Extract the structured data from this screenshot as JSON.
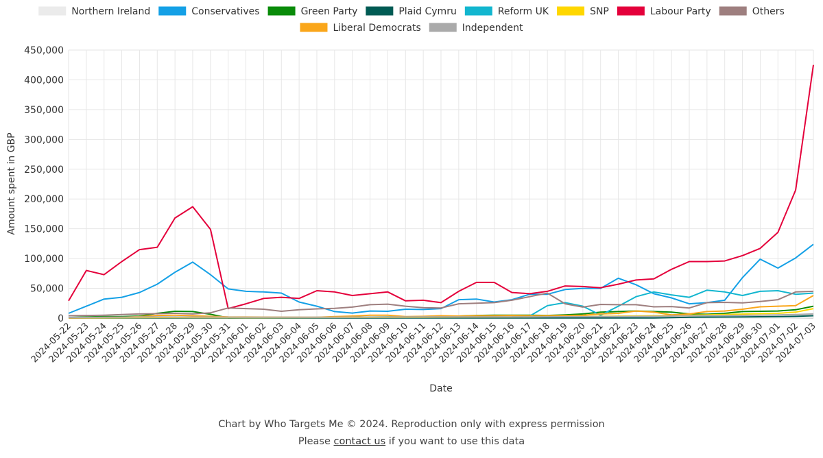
{
  "chart_data": {
    "type": "line",
    "xlabel": "Date",
    "ylabel": "Amount spent in GBP",
    "ylim": [
      0,
      450000
    ],
    "yticks": [
      0,
      50000,
      100000,
      150000,
      200000,
      250000,
      300000,
      350000,
      400000,
      450000
    ],
    "ytick_labels": [
      "0",
      "50,000",
      "100,000",
      "150,000",
      "200,000",
      "250,000",
      "300,000",
      "350,000",
      "400,000",
      "450,000"
    ],
    "grid": true,
    "legend_position": "top",
    "x": [
      "2024-05-22",
      "2024-05-23",
      "2024-05-24",
      "2024-05-25",
      "2024-05-26",
      "2024-05-27",
      "2024-05-28",
      "2024-05-29",
      "2024-05-30",
      "2024-05-31",
      "2024-06-01",
      "2024-06-02",
      "2024-06-03",
      "2024-06-04",
      "2024-06-05",
      "2024-06-06",
      "2024-06-07",
      "2024-06-08",
      "2024-06-09",
      "2024-06-10",
      "2024-06-11",
      "2024-06-12",
      "2024-06-13",
      "2024-06-14",
      "2024-06-15",
      "2024-06-16",
      "2024-06-17",
      "2024-06-18",
      "2024-06-19",
      "2024-06-20",
      "2024-06-21",
      "2024-06-22",
      "2024-06-23",
      "2024-06-24",
      "2024-06-25",
      "2024-06-26",
      "2024-06-27",
      "2024-06-28",
      "2024-06-29",
      "2024-06-30",
      "2024-07-01",
      "2024-07-02",
      "2024-07-03"
    ],
    "series": [
      {
        "name": "Northern Ireland",
        "color": "#ebebeb",
        "points": [
          [
            0,
            200
          ],
          [
            5,
            500
          ],
          [
            10,
            500
          ],
          [
            20,
            500
          ],
          [
            30,
            500
          ],
          [
            40,
            500
          ],
          [
            42,
            1000
          ]
        ]
      },
      {
        "name": "Conservatives",
        "color": "#14a0e6",
        "points": [
          [
            0,
            8000
          ],
          [
            1,
            20000
          ],
          [
            2,
            32000
          ],
          [
            3,
            35000
          ],
          [
            4,
            43000
          ],
          [
            5,
            57000
          ],
          [
            6,
            77000
          ],
          [
            7,
            94000
          ],
          [
            8,
            73000
          ],
          [
            9,
            49000
          ],
          [
            10,
            45000
          ],
          [
            11,
            44000
          ],
          [
            12,
            42000
          ],
          [
            13,
            27000
          ],
          [
            14,
            20000
          ],
          [
            15,
            11000
          ],
          [
            16,
            8500
          ],
          [
            17,
            12000
          ],
          [
            18,
            11500
          ],
          [
            19,
            15000
          ],
          [
            20,
            14500
          ],
          [
            21,
            16000
          ],
          [
            22,
            31000
          ],
          [
            23,
            32000
          ],
          [
            24,
            27000
          ],
          [
            25,
            31000
          ],
          [
            26,
            40000
          ],
          [
            27,
            40000
          ],
          [
            28,
            48000
          ],
          [
            29,
            50000
          ],
          [
            30,
            50000
          ],
          [
            31,
            67000
          ],
          [
            32,
            56000
          ],
          [
            33,
            41000
          ],
          [
            34,
            34000
          ],
          [
            35,
            24000
          ],
          [
            36,
            26000
          ],
          [
            37,
            30000
          ],
          [
            38,
            68000
          ],
          [
            39,
            99000
          ],
          [
            40,
            84000
          ],
          [
            41,
            101000
          ],
          [
            42,
            124000
          ]
        ]
      },
      {
        "name": "Green Party",
        "color": "#098b09",
        "points": [
          [
            0,
            1000
          ],
          [
            1,
            2000
          ],
          [
            2,
            2500
          ],
          [
            3,
            2500
          ],
          [
            4,
            3500
          ],
          [
            5,
            8000
          ],
          [
            6,
            11500
          ],
          [
            7,
            11000
          ],
          [
            8,
            6500
          ],
          [
            9,
            500
          ],
          [
            21,
            2500
          ],
          [
            22,
            3500
          ],
          [
            23,
            4500
          ],
          [
            24,
            5000
          ],
          [
            25,
            5000
          ],
          [
            26,
            5000
          ],
          [
            27,
            4500
          ],
          [
            28,
            5500
          ],
          [
            29,
            7000
          ],
          [
            30,
            10000
          ],
          [
            31,
            11000
          ],
          [
            32,
            12000
          ],
          [
            33,
            11000
          ],
          [
            34,
            10000
          ],
          [
            35,
            7000
          ],
          [
            36,
            6500
          ],
          [
            37,
            8000
          ],
          [
            38,
            11000
          ],
          [
            39,
            11500
          ],
          [
            40,
            12000
          ],
          [
            41,
            14000
          ],
          [
            42,
            20000
          ]
        ]
      },
      {
        "name": "Plaid Cymru",
        "color": "#005b54",
        "points": [
          [
            0,
            200
          ],
          [
            10,
            300
          ],
          [
            20,
            300
          ],
          [
            30,
            300
          ],
          [
            33,
            400
          ],
          [
            35,
            1500
          ],
          [
            38,
            2000
          ],
          [
            40,
            2500
          ],
          [
            41,
            3000
          ],
          [
            42,
            4000
          ]
        ]
      },
      {
        "name": "Reform UK",
        "color": "#12b6cf",
        "points": [
          [
            25,
            3500
          ],
          [
            26,
            3500
          ],
          [
            27,
            21000
          ],
          [
            28,
            26000
          ],
          [
            29,
            20000
          ],
          [
            30,
            5000
          ],
          [
            31,
            20000
          ],
          [
            32,
            36000
          ],
          [
            33,
            44000
          ],
          [
            34,
            39000
          ],
          [
            35,
            35000
          ],
          [
            36,
            47000
          ],
          [
            37,
            44000
          ],
          [
            38,
            38000
          ],
          [
            39,
            45000
          ],
          [
            40,
            46000
          ],
          [
            41,
            40000
          ],
          [
            42,
            42000
          ]
        ]
      },
      {
        "name": "SNP",
        "color": "#ffd700",
        "points": [
          [
            0,
            500
          ],
          [
            5,
            1000
          ],
          [
            10,
            800
          ],
          [
            20,
            1500
          ],
          [
            25,
            2000
          ],
          [
            30,
            3000
          ],
          [
            33,
            4000
          ],
          [
            35,
            5000
          ],
          [
            37,
            6000
          ],
          [
            39,
            7500
          ],
          [
            40,
            8000
          ],
          [
            41,
            10000
          ],
          [
            42,
            16000
          ]
        ]
      },
      {
        "name": "Labour Party",
        "color": "#e4003b",
        "points": [
          [
            0,
            29000
          ],
          [
            1,
            80000
          ],
          [
            2,
            73000
          ],
          [
            3,
            95000
          ],
          [
            4,
            115000
          ],
          [
            5,
            119000
          ],
          [
            6,
            168000
          ],
          [
            7,
            187000
          ],
          [
            8,
            149000
          ],
          [
            9,
            16000
          ],
          [
            10,
            24000
          ],
          [
            11,
            33000
          ],
          [
            12,
            35000
          ],
          [
            13,
            33000
          ],
          [
            14,
            46000
          ],
          [
            15,
            44000
          ],
          [
            16,
            38000
          ],
          [
            17,
            41000
          ],
          [
            18,
            44000
          ],
          [
            19,
            29000
          ],
          [
            20,
            30000
          ],
          [
            21,
            26000
          ],
          [
            22,
            45000
          ],
          [
            23,
            60000
          ],
          [
            24,
            60000
          ],
          [
            25,
            43000
          ],
          [
            26,
            41000
          ],
          [
            27,
            45000
          ],
          [
            28,
            54000
          ],
          [
            29,
            53000
          ],
          [
            30,
            51000
          ],
          [
            31,
            57000
          ],
          [
            32,
            64000
          ],
          [
            33,
            66000
          ],
          [
            34,
            82000
          ],
          [
            35,
            95000
          ],
          [
            36,
            95000
          ],
          [
            37,
            96000
          ],
          [
            38,
            105000
          ],
          [
            39,
            117000
          ],
          [
            40,
            144000
          ],
          [
            41,
            215000
          ],
          [
            42,
            425000
          ]
        ]
      },
      {
        "name": "Others",
        "color": "#9e7f7f",
        "points": [
          [
            0,
            4000
          ],
          [
            1,
            4500
          ],
          [
            2,
            5000
          ],
          [
            3,
            6000
          ],
          [
            4,
            7000
          ],
          [
            5,
            7500
          ],
          [
            6,
            8000
          ],
          [
            7,
            7000
          ],
          [
            8,
            9000
          ],
          [
            9,
            17000
          ],
          [
            10,
            16000
          ],
          [
            11,
            15000
          ],
          [
            12,
            11500
          ],
          [
            13,
            14000
          ],
          [
            14,
            15500
          ],
          [
            15,
            16500
          ],
          [
            16,
            18500
          ],
          [
            17,
            22500
          ],
          [
            18,
            23500
          ],
          [
            19,
            20000
          ],
          [
            20,
            17500
          ],
          [
            21,
            17000
          ],
          [
            22,
            24000
          ],
          [
            23,
            25000
          ],
          [
            24,
            26000
          ],
          [
            25,
            30000
          ],
          [
            26,
            36000
          ],
          [
            27,
            42000
          ],
          [
            28,
            24000
          ],
          [
            29,
            18500
          ],
          [
            30,
            23000
          ],
          [
            31,
            22500
          ],
          [
            32,
            22500
          ],
          [
            33,
            19000
          ],
          [
            34,
            19500
          ],
          [
            35,
            17000
          ],
          [
            36,
            26000
          ],
          [
            37,
            26500
          ],
          [
            38,
            25500
          ],
          [
            39,
            28000
          ],
          [
            40,
            31000
          ],
          [
            41,
            44000
          ],
          [
            42,
            45000
          ]
        ]
      },
      {
        "name": "Liberal Democrats",
        "color": "#faa61a",
        "points": [
          [
            0,
            500
          ],
          [
            3,
            1500
          ],
          [
            4,
            2500
          ],
          [
            5,
            4500
          ],
          [
            6,
            5000
          ],
          [
            7,
            4000
          ],
          [
            8,
            3000
          ],
          [
            9,
            2000
          ],
          [
            14,
            1500
          ],
          [
            15,
            2500
          ],
          [
            16,
            3500
          ],
          [
            17,
            5000
          ],
          [
            18,
            5000
          ],
          [
            19,
            2500
          ],
          [
            20,
            3000
          ],
          [
            21,
            4000
          ],
          [
            22,
            3500
          ],
          [
            23,
            4000
          ],
          [
            24,
            4000
          ],
          [
            25,
            4500
          ],
          [
            26,
            4000
          ],
          [
            27,
            4000
          ],
          [
            28,
            4500
          ],
          [
            29,
            5000
          ],
          [
            30,
            7000
          ],
          [
            31,
            8000
          ],
          [
            32,
            12000
          ],
          [
            33,
            10000
          ],
          [
            34,
            5500
          ],
          [
            35,
            7000
          ],
          [
            36,
            11000
          ],
          [
            37,
            12000
          ],
          [
            38,
            15000
          ],
          [
            39,
            19000
          ],
          [
            40,
            20000
          ],
          [
            41,
            21000
          ],
          [
            42,
            38000
          ]
        ]
      },
      {
        "name": "Independent",
        "color": "#aaaaaa",
        "points": [
          [
            0,
            1000
          ],
          [
            5,
            2000
          ],
          [
            10,
            1500
          ],
          [
            15,
            1500
          ],
          [
            20,
            2000
          ],
          [
            25,
            2000
          ],
          [
            30,
            2500
          ],
          [
            33,
            3000
          ],
          [
            35,
            4000
          ],
          [
            37,
            4500
          ],
          [
            39,
            5000
          ],
          [
            40,
            5500
          ],
          [
            41,
            6000
          ],
          [
            42,
            7000
          ]
        ]
      }
    ]
  },
  "footer": {
    "line1": "Chart by Who Targets Me © 2024. Reproduction only with express permission",
    "line2_pre": "Please ",
    "line2_link": "contact us",
    "line2_post": " if you want to use this data"
  }
}
